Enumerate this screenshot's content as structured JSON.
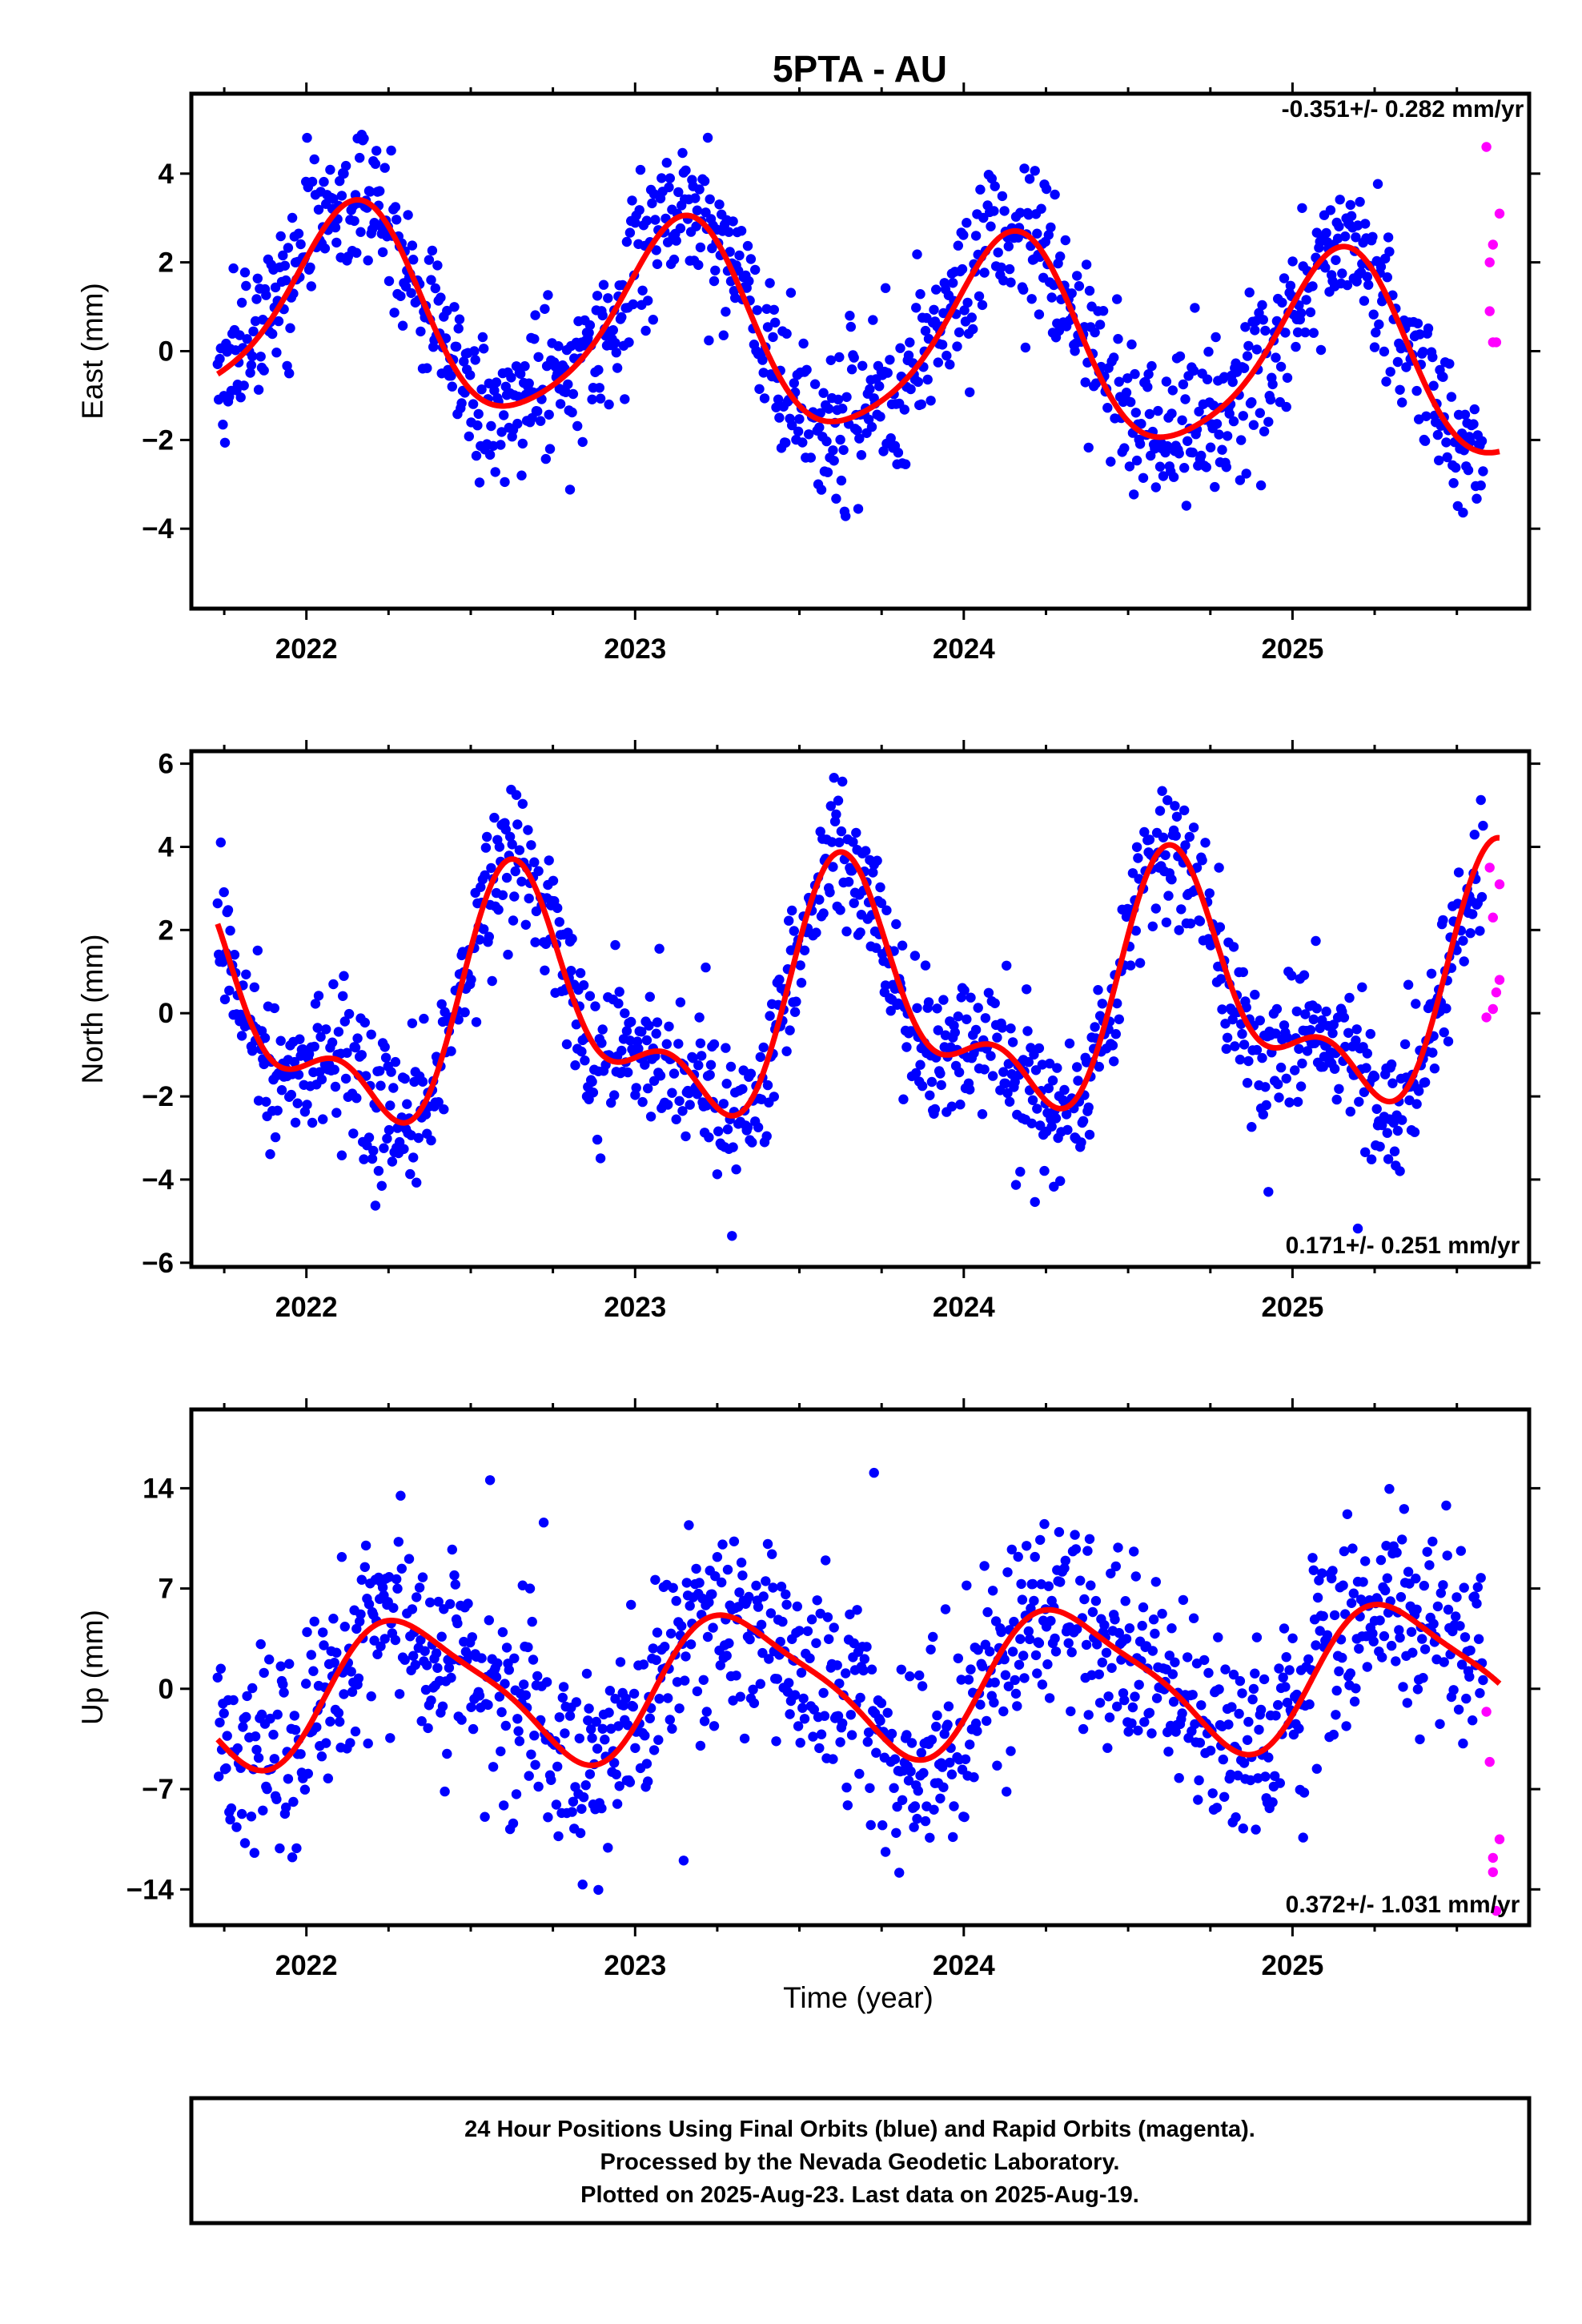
{
  "colors": {
    "final_orbits": "#0000ff",
    "rapid_orbits": "#ff00ff",
    "fit": "#ff0000",
    "frame": "#000000",
    "background": "#ffffff"
  },
  "footer": {
    "line1": "24 Hour Positions Using Final Orbits (blue) and Rapid Orbits (magenta).",
    "line2": "Processed by the Nevada Geodetic Laboratory.",
    "line3": "Plotted on 2025-Aug-23. Last data on 2025-Aug-19."
  },
  "chart_data": [
    {
      "type": "scatter",
      "title": "5PTA - AU",
      "ylabel": "East (mm)",
      "xlabel": "",
      "rate_text": "-0.351+/- 0.282 mm/yr",
      "xlim": [
        2021.65,
        2025.72
      ],
      "ylim": [
        -5.8,
        5.8
      ],
      "xticks": [
        2022,
        2023,
        2024,
        2025
      ],
      "yticks": [
        4,
        2,
        0,
        -2,
        -4
      ],
      "yticklabels": [
        "4",
        "2",
        "0",
        "−2",
        "−4"
      ],
      "grid": false,
      "seasonal_model": {
        "description": "fitted annual + semiannual curve (red)",
        "offset": 0.35,
        "rate": -0.351,
        "reference_epoch": 2023.7,
        "annual_cos": 1.4,
        "annual_sin": 1.7,
        "semiannual_cos": -0.25,
        "semiannual_sin": 0.25,
        "x_start": 2021.73,
        "x_end": 2025.63,
        "scatter_sd": 0.85
      },
      "series": [
        {
          "name": "Final Orbits",
          "color": "#0000ff",
          "x_start": 2021.73,
          "x_end": 2025.58,
          "step": 0.0032
        },
        {
          "name": "Rapid Orbits",
          "color": "#ff00ff",
          "x": [
            2025.59,
            2025.6,
            2025.6,
            2025.61,
            2025.61,
            2025.62,
            2025.63
          ],
          "y": [
            4.6,
            2.0,
            0.9,
            2.4,
            0.2,
            0.2,
            3.1
          ]
        }
      ]
    },
    {
      "type": "scatter",
      "title": "",
      "ylabel": "North (mm)",
      "xlabel": "",
      "rate_text": "0.171+/- 0.251 mm/yr",
      "xlim": [
        2021.65,
        2025.72
      ],
      "ylim": [
        -6.1,
        6.3
      ],
      "xticks": [
        2022,
        2023,
        2024,
        2025
      ],
      "yticks": [
        6,
        4,
        2,
        0,
        -2,
        -4,
        -6
      ],
      "yticklabels": [
        "6",
        "4",
        "2",
        "0",
        "−2",
        "−4",
        "−6"
      ],
      "grid": false,
      "seasonal_model": {
        "description": "fitted annual + semiannual curve (red)",
        "offset": 0.15,
        "rate": 0.171,
        "reference_epoch": 2023.7,
        "annual_cos": -1.35,
        "annual_sin": -2.1,
        "semiannual_cos": 0.25,
        "semiannual_sin": 1.3,
        "x_start": 2021.73,
        "x_end": 2025.63,
        "scatter_sd": 0.85
      },
      "series": [
        {
          "name": "Final Orbits",
          "color": "#0000ff",
          "x_start": 2021.73,
          "x_end": 2025.58,
          "step": 0.0032
        },
        {
          "name": "Rapid Orbits",
          "color": "#ff00ff",
          "x": [
            2025.59,
            2025.6,
            2025.61,
            2025.61,
            2025.62,
            2025.63,
            2025.63
          ],
          "y": [
            -0.1,
            3.5,
            0.1,
            2.3,
            0.5,
            0.8,
            3.1
          ]
        }
      ]
    },
    {
      "type": "scatter",
      "title": "",
      "ylabel": "Up (mm)",
      "xlabel": "Time (year)",
      "rate_text": "0.372+/- 1.031 mm/yr",
      "xlim": [
        2021.65,
        2025.72
      ],
      "ylim": [
        -16.5,
        19.5
      ],
      "xticks": [
        2022,
        2023,
        2024,
        2025
      ],
      "yticks": [
        14,
        7,
        0,
        -7,
        -14
      ],
      "yticklabels": [
        "14",
        "7",
        "0",
        "−7",
        "−14"
      ],
      "grid": false,
      "seasonal_model": {
        "description": "fitted annual + semiannual curve (red)",
        "offset": 0.4,
        "rate": 0.372,
        "reference_epoch": 2023.7,
        "annual_cos": -2.1,
        "annual_sin": 4.3,
        "semiannual_cos": -0.6,
        "semiannual_sin": 0.9,
        "x_start": 2021.73,
        "x_end": 2025.63,
        "scatter_sd": 3.4
      },
      "series": [
        {
          "name": "Final Orbits",
          "color": "#0000ff",
          "x_start": 2021.73,
          "x_end": 2025.58,
          "step": 0.0032
        },
        {
          "name": "Rapid Orbits",
          "color": "#ff00ff",
          "x": [
            2025.59,
            2025.6,
            2025.61,
            2025.61,
            2025.62,
            2025.63
          ],
          "y": [
            -1.6,
            -5.1,
            -12.8,
            -11.8,
            -15.5,
            -10.5
          ]
        }
      ]
    }
  ]
}
